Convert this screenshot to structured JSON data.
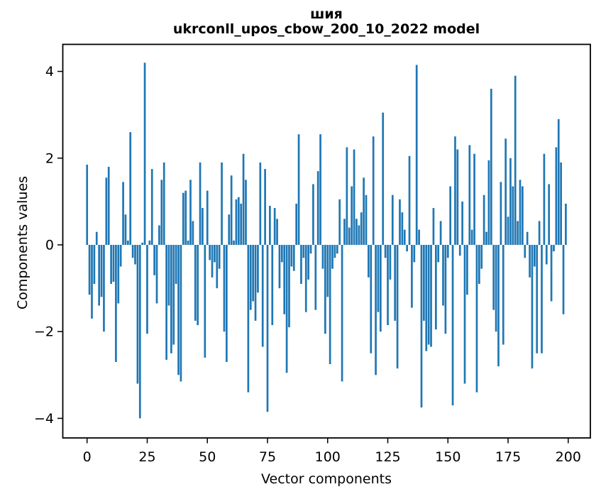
{
  "chart_data": {
    "type": "bar",
    "title_word": "шия",
    "title_model": "ukrconll_upos_cbow_200_10_2022 model",
    "xlabel": "Vector components",
    "ylabel": "Components values",
    "bar_color": "#1f77b4",
    "legend": "none",
    "grid": false,
    "n_components": 200,
    "x_ticks": [
      0,
      25,
      50,
      75,
      100,
      125,
      150,
      175,
      200
    ],
    "y_ticks": [
      -4,
      -2,
      0,
      2,
      4
    ],
    "xlim": [
      -10.6,
      209.2
    ],
    "ylim": [
      -4.45,
      4.62
    ],
    "values": [
      1.85,
      -1.15,
      -1.7,
      -0.9,
      0.3,
      -1.4,
      -1.2,
      -2.0,
      1.55,
      1.8,
      -0.9,
      -0.85,
      -2.7,
      -1.35,
      -0.5,
      1.45,
      0.7,
      0.1,
      2.6,
      -0.3,
      -0.45,
      -3.2,
      -4.0,
      0.05,
      4.2,
      -2.05,
      0.1,
      1.75,
      -0.7,
      -1.35,
      0.45,
      1.5,
      1.9,
      -2.65,
      -1.4,
      -2.5,
      -2.3,
      -0.9,
      -3.0,
      -3.15,
      1.2,
      1.25,
      0.1,
      1.5,
      0.55,
      -1.75,
      -1.85,
      1.9,
      0.85,
      -2.6,
      1.25,
      -0.35,
      -0.75,
      -0.4,
      -1.0,
      -0.55,
      1.9,
      -2.0,
      -2.7,
      0.7,
      1.6,
      0.1,
      1.05,
      1.1,
      0.95,
      2.1,
      1.5,
      -3.4,
      -1.5,
      -1.3,
      -1.75,
      -1.1,
      1.9,
      -2.35,
      1.75,
      -3.85,
      0.9,
      -1.85,
      0.85,
      0.6,
      -1.0,
      -0.4,
      -1.6,
      -2.95,
      -1.9,
      -0.5,
      -0.6,
      0.95,
      2.55,
      -0.9,
      -0.3,
      -1.55,
      -0.8,
      -0.2,
      1.4,
      -1.5,
      1.7,
      2.55,
      -0.55,
      -2.05,
      -1.2,
      -2.75,
      -0.55,
      -0.3,
      -0.2,
      1.05,
      -3.15,
      0.6,
      2.25,
      0.4,
      1.35,
      2.2,
      0.6,
      0.45,
      0.75,
      1.55,
      1.15,
      -0.75,
      -2.5,
      2.5,
      -3.0,
      -1.55,
      -2.0,
      3.05,
      -0.3,
      -1.85,
      -0.8,
      1.15,
      -1.75,
      -2.85,
      1.05,
      0.75,
      0.35,
      -0.15,
      2.05,
      -1.45,
      -0.4,
      4.15,
      0.35,
      -3.75,
      -1.75,
      -2.45,
      -2.3,
      -2.35,
      0.85,
      -1.95,
      -0.4,
      0.55,
      -1.4,
      -2.05,
      -0.3,
      1.35,
      -3.7,
      2.5,
      2.2,
      -0.25,
      1.0,
      -3.2,
      -1.15,
      2.3,
      0.35,
      2.1,
      -3.4,
      -0.9,
      -0.55,
      1.15,
      0.3,
      1.95,
      3.6,
      -1.5,
      -2.0,
      -2.8,
      1.45,
      -2.3,
      2.45,
      0.65,
      2.0,
      1.35,
      3.9,
      0.55,
      1.5,
      1.35,
      -0.3,
      0.3,
      -0.75,
      -2.85,
      -0.5,
      -2.5,
      0.55,
      -2.5,
      2.1,
      -0.45,
      1.4,
      -1.3,
      -0.15,
      2.25,
      2.9,
      1.9,
      -1.6,
      0.95
    ]
  }
}
